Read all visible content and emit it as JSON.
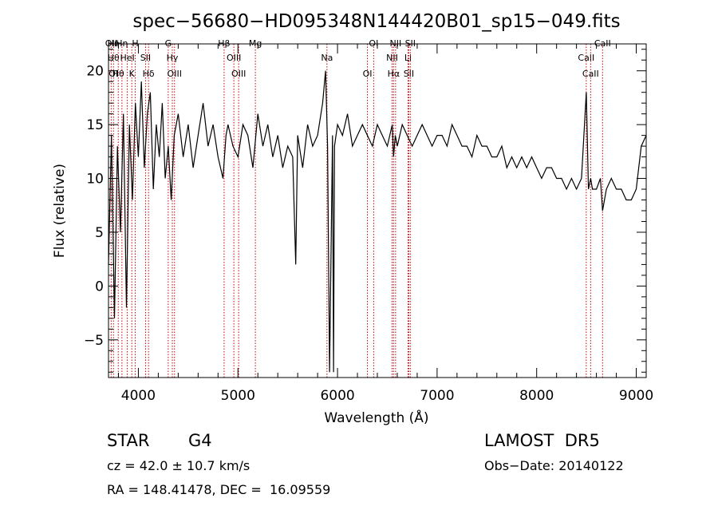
{
  "chart_data": {
    "type": "line",
    "title": "spec−56680−HD095348N144420B01_sp15−049.fits",
    "xlabel": "Wavelength (Å)",
    "ylabel": "Flux (relative)",
    "xlim": [
      3700,
      9100
    ],
    "ylim": [
      -8.5,
      22.5
    ],
    "xticks": [
      4000,
      5000,
      6000,
      7000,
      8000,
      9000
    ],
    "yticks": [
      -5,
      0,
      5,
      10,
      15,
      20
    ],
    "grid": false,
    "series": [
      {
        "color": "#000000",
        "x": [
          3700,
          3730,
          3760,
          3790,
          3820,
          3850,
          3880,
          3910,
          3940,
          3970,
          4000,
          4030,
          4060,
          4090,
          4120,
          4150,
          4180,
          4210,
          4240,
          4270,
          4300,
          4330,
          4360,
          4400,
          4450,
          4500,
          4550,
          4600,
          4650,
          4700,
          4750,
          4800,
          4850,
          4880,
          4900,
          4950,
          5000,
          5050,
          5100,
          5150,
          5200,
          5250,
          5300,
          5350,
          5400,
          5450,
          5500,
          5550,
          5580,
          5600,
          5650,
          5700,
          5750,
          5800,
          5850,
          5880,
          5900,
          5920,
          5950,
          5960,
          5970,
          6000,
          6050,
          6100,
          6150,
          6200,
          6250,
          6300,
          6350,
          6400,
          6450,
          6500,
          6550,
          6563,
          6580,
          6600,
          6650,
          6700,
          6750,
          6800,
          6850,
          6900,
          6950,
          7000,
          7050,
          7100,
          7150,
          7200,
          7250,
          7300,
          7350,
          7400,
          7450,
          7500,
          7550,
          7600,
          7650,
          7700,
          7750,
          7800,
          7850,
          7900,
          7950,
          8000,
          8050,
          8100,
          8150,
          8200,
          8250,
          8300,
          8350,
          8400,
          8450,
          8498,
          8520,
          8542,
          8560,
          8600,
          8640,
          8662,
          8700,
          8750,
          8800,
          8850,
          8900,
          8950,
          9000,
          9050,
          9100
        ],
        "y": [
          2,
          14,
          -3,
          13,
          5,
          16,
          -2,
          15,
          8,
          17,
          12,
          19,
          11,
          16,
          18,
          9,
          15,
          12,
          17,
          10,
          13,
          8,
          14,
          16,
          12,
          15,
          11,
          14,
          17,
          13,
          15,
          12,
          10,
          14,
          15,
          13,
          12,
          15,
          14,
          11,
          16,
          13,
          15,
          12,
          14,
          11,
          13,
          12,
          2,
          14,
          11,
          15,
          13,
          14,
          17,
          20,
          13,
          -8,
          14,
          -8,
          13,
          15,
          14,
          16,
          13,
          14,
          15,
          14,
          13,
          15,
          14,
          13,
          15,
          12,
          14,
          13,
          15,
          14,
          13,
          14,
          15,
          14,
          13,
          14,
          14,
          13,
          15,
          14,
          13,
          13,
          12,
          14,
          13,
          13,
          12,
          12,
          13,
          11,
          12,
          11,
          12,
          11,
          12,
          11,
          10,
          11,
          11,
          10,
          10,
          9,
          10,
          9,
          10,
          18,
          9,
          10,
          9,
          9,
          10,
          7,
          9,
          10,
          9,
          9,
          8,
          8,
          9,
          13,
          14
        ]
      }
    ],
    "lines": [
      {
        "wave": 3727,
        "labels": [
          "OII"
        ]
      },
      {
        "wave": 3750,
        "labels": [
          "Hθ",
          "OI",
          "Hη"
        ]
      },
      {
        "wave": 3798,
        "labels": [
          "Hθ"
        ]
      },
      {
        "wave": 3835,
        "labels": [
          "Hη"
        ]
      },
      {
        "wave": 3889,
        "labels": [
          "HeI"
        ]
      },
      {
        "wave": 3934,
        "labels": [
          "K"
        ]
      },
      {
        "wave": 3969,
        "labels": [
          "H"
        ]
      },
      {
        "wave": 4072,
        "labels": [
          "SII"
        ]
      },
      {
        "wave": 4102,
        "labels": [
          "Hδ"
        ]
      },
      {
        "wave": 4300,
        "labels": [
          "G"
        ]
      },
      {
        "wave": 4341,
        "labels": [
          "Hγ"
        ]
      },
      {
        "wave": 4363,
        "labels": [
          "OIII"
        ]
      },
      {
        "wave": 4861,
        "labels": [
          "Hβ"
        ]
      },
      {
        "wave": 4959,
        "labels": [
          "OIII"
        ]
      },
      {
        "wave": 5007,
        "labels": [
          "OIII"
        ]
      },
      {
        "wave": 5175,
        "labels": [
          "Mg"
        ]
      },
      {
        "wave": 5894,
        "labels": [
          "Na"
        ]
      },
      {
        "wave": 6300,
        "labels": [
          "OI"
        ]
      },
      {
        "wave": 6363,
        "labels": [
          "OI"
        ]
      },
      {
        "wave": 6548,
        "labels": [
          "NII"
        ]
      },
      {
        "wave": 6563,
        "labels": [
          "Hα"
        ]
      },
      {
        "wave": 6583,
        "labels": [
          "NII"
        ]
      },
      {
        "wave": 6708,
        "labels": [
          "Li"
        ]
      },
      {
        "wave": 6716,
        "labels": [
          "SII"
        ]
      },
      {
        "wave": 6731,
        "labels": [
          "SII"
        ]
      },
      {
        "wave": 8498,
        "labels": [
          "CaII"
        ]
      },
      {
        "wave": 8542,
        "labels": [
          "CaII"
        ]
      },
      {
        "wave": 8662,
        "labels": [
          "CaII"
        ]
      }
    ],
    "line_color": "#cc0000"
  },
  "info": {
    "class": "STAR",
    "subclass": "G4",
    "survey": "LAMOST  DR5",
    "cz": "cz = 42.0 ± 10.7 km/s",
    "obs_date": "Obs−Date: 20140122",
    "coords": "RA = 148.41478, DEC =  16.09559"
  }
}
